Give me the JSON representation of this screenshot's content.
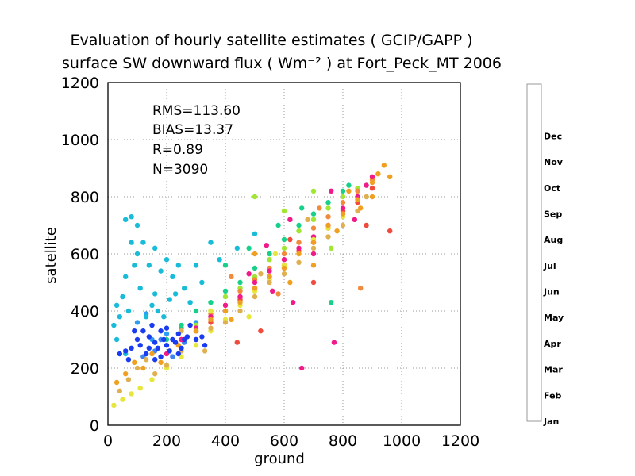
{
  "chart_data": {
    "type": "scatter",
    "title": "Evaluation of hourly satellite estimates ( GCIP/GAPP )",
    "subtitle": "surface SW downward flux ( Wm⁻² ) at Fort_Peck_MT 2006",
    "xlabel": "ground",
    "ylabel": "satellite",
    "xlim": [
      0,
      1200
    ],
    "ylim": [
      0,
      1200
    ],
    "xticks": [
      "0",
      "200",
      "400",
      "600",
      "800",
      "1000",
      "1200"
    ],
    "yticks": [
      "0",
      "200",
      "400",
      "600",
      "800",
      "1000",
      "1200"
    ],
    "grid": true,
    "stats": [
      "RMS=113.60",
      "BIAS=13.37",
      "R=0.89",
      "N=3090"
    ],
    "colorbar": {
      "placement": "right",
      "months": [
        {
          "label": "Jan",
          "color": "#3f84f0"
        },
        {
          "label": "Feb",
          "color": "#2a9df5"
        },
        {
          "label": "Mar",
          "color": "#19bcd8"
        },
        {
          "label": "Apr",
          "color": "#18d08a"
        },
        {
          "label": "May",
          "color": "#20d020"
        },
        {
          "label": "Jun",
          "color": "#a0e632"
        },
        {
          "label": "Jul",
          "color": "#f28a3c"
        },
        {
          "label": "Aug",
          "color": "#f04b3c"
        },
        {
          "label": "Sep",
          "color": "#f01a8a"
        },
        {
          "label": "Oct",
          "color": "#e6e63c"
        },
        {
          "label": "Nov",
          "color": "#e0b050"
        },
        {
          "label": "Dec",
          "color": "#f0a020"
        },
        {
          "label": "",
          "color": "#1a3cf0"
        }
      ]
    },
    "series": [
      {
        "month": "Dec",
        "color": "#1a3cf0",
        "points": [
          [
            40,
            250
          ],
          [
            60,
            260
          ],
          [
            80,
            270
          ],
          [
            100,
            300
          ],
          [
            120,
            330
          ],
          [
            140,
            310
          ],
          [
            160,
            290
          ],
          [
            180,
            330
          ],
          [
            200,
            280
          ],
          [
            220,
            300
          ],
          [
            240,
            320
          ],
          [
            260,
            300
          ],
          [
            280,
            350
          ],
          [
            300,
            300
          ],
          [
            70,
            230
          ],
          [
            110,
            280
          ],
          [
            130,
            250
          ],
          [
            150,
            350
          ],
          [
            170,
            270
          ],
          [
            190,
            300
          ],
          [
            210,
            260
          ],
          [
            230,
            290
          ],
          [
            250,
            270
          ],
          [
            270,
            310
          ],
          [
            90,
            330
          ],
          [
            200,
            340
          ],
          [
            180,
            240
          ],
          [
            160,
            230
          ],
          [
            320,
            310
          ],
          [
            330,
            280
          ],
          [
            240,
            250
          ],
          [
            140,
            270
          ]
        ]
      },
      {
        "month": "Nov",
        "color": "#f0a020",
        "points": [
          [
            30,
            150
          ],
          [
            60,
            180
          ],
          [
            90,
            220
          ],
          [
            120,
            200
          ],
          [
            150,
            250
          ],
          [
            180,
            220
          ],
          [
            210,
            260
          ],
          [
            240,
            280
          ],
          [
            300,
            330
          ],
          [
            350,
            370
          ],
          [
            400,
            400
          ],
          [
            450,
            430
          ],
          [
            500,
            480
          ],
          [
            550,
            520
          ],
          [
            600,
            550
          ],
          [
            650,
            600
          ],
          [
            700,
            640
          ],
          [
            750,
            700
          ],
          [
            800,
            740
          ],
          [
            850,
            790
          ],
          [
            900,
            850
          ],
          [
            920,
            880
          ],
          [
            940,
            910
          ],
          [
            500,
            600
          ],
          [
            420,
            370
          ],
          [
            620,
            500
          ],
          [
            700,
            560
          ],
          [
            780,
            680
          ],
          [
            860,
            760
          ],
          [
            900,
            800
          ],
          [
            960,
            870
          ],
          [
            820,
            820
          ]
        ]
      },
      {
        "month": "Oct",
        "color": "#e0b050",
        "points": [
          [
            40,
            120
          ],
          [
            70,
            160
          ],
          [
            100,
            200
          ],
          [
            130,
            230
          ],
          [
            160,
            180
          ],
          [
            200,
            210
          ],
          [
            250,
            260
          ],
          [
            300,
            300
          ],
          [
            350,
            340
          ],
          [
            400,
            360
          ],
          [
            450,
            400
          ],
          [
            500,
            450
          ],
          [
            550,
            500
          ],
          [
            600,
            530
          ],
          [
            650,
            570
          ],
          [
            700,
            620
          ],
          [
            750,
            660
          ],
          [
            800,
            700
          ],
          [
            850,
            750
          ],
          [
            880,
            800
          ],
          [
            250,
            330
          ],
          [
            330,
            260
          ],
          [
            520,
            530
          ],
          [
            680,
            720
          ]
        ]
      },
      {
        "month": "Sep",
        "color": "#e6e63c",
        "points": [
          [
            20,
            70
          ],
          [
            50,
            90
          ],
          [
            80,
            110
          ],
          [
            110,
            130
          ],
          [
            150,
            160
          ],
          [
            200,
            200
          ],
          [
            250,
            240
          ],
          [
            300,
            280
          ],
          [
            350,
            330
          ],
          [
            400,
            370
          ],
          [
            450,
            420
          ],
          [
            500,
            470
          ],
          [
            550,
            510
          ],
          [
            600,
            560
          ],
          [
            650,
            600
          ],
          [
            700,
            650
          ],
          [
            750,
            690
          ],
          [
            800,
            730
          ],
          [
            350,
            400
          ],
          [
            480,
            380
          ],
          [
            570,
            600
          ]
        ]
      },
      {
        "month": "Aug",
        "color": "#f01a8a",
        "points": [
          [
            200,
            250
          ],
          [
            250,
            300
          ],
          [
            300,
            340
          ],
          [
            350,
            380
          ],
          [
            400,
            420
          ],
          [
            450,
            450
          ],
          [
            500,
            500
          ],
          [
            550,
            540
          ],
          [
            600,
            580
          ],
          [
            650,
            620
          ],
          [
            700,
            660
          ],
          [
            750,
            700
          ],
          [
            800,
            760
          ],
          [
            850,
            800
          ],
          [
            880,
            840
          ],
          [
            900,
            870
          ],
          [
            660,
            200
          ],
          [
            770,
            290
          ],
          [
            630,
            430
          ],
          [
            540,
            630
          ],
          [
            620,
            720
          ],
          [
            700,
            600
          ],
          [
            840,
            720
          ],
          [
            760,
            820
          ],
          [
            560,
            470
          ],
          [
            480,
            530
          ]
        ]
      },
      {
        "month": "Jul",
        "color": "#f04b3c",
        "points": [
          [
            300,
            330
          ],
          [
            350,
            360
          ],
          [
            400,
            400
          ],
          [
            450,
            440
          ],
          [
            500,
            480
          ],
          [
            550,
            520
          ],
          [
            600,
            560
          ],
          [
            650,
            610
          ],
          [
            700,
            640
          ],
          [
            750,
            690
          ],
          [
            800,
            750
          ],
          [
            850,
            780
          ],
          [
            900,
            830
          ],
          [
            440,
            290
          ],
          [
            520,
            330
          ],
          [
            960,
            680
          ],
          [
            880,
            700
          ],
          [
            620,
            650
          ],
          [
            700,
            500
          ]
        ]
      },
      {
        "month": "Jun",
        "color": "#f28a3c",
        "points": [
          [
            250,
            300
          ],
          [
            300,
            340
          ],
          [
            350,
            390
          ],
          [
            400,
            420
          ],
          [
            450,
            470
          ],
          [
            500,
            510
          ],
          [
            550,
            550
          ],
          [
            600,
            600
          ],
          [
            650,
            640
          ],
          [
            700,
            690
          ],
          [
            750,
            730
          ],
          [
            800,
            780
          ],
          [
            850,
            820
          ],
          [
            900,
            860
          ],
          [
            860,
            480
          ],
          [
            420,
            520
          ],
          [
            580,
            460
          ],
          [
            720,
            760
          ]
        ]
      },
      {
        "month": "May",
        "color": "#a0e632",
        "points": [
          [
            300,
            350
          ],
          [
            350,
            400
          ],
          [
            400,
            450
          ],
          [
            450,
            480
          ],
          [
            500,
            520
          ],
          [
            550,
            580
          ],
          [
            600,
            620
          ],
          [
            650,
            680
          ],
          [
            700,
            720
          ],
          [
            750,
            760
          ],
          [
            800,
            800
          ],
          [
            850,
            830
          ],
          [
            500,
            800
          ],
          [
            600,
            750
          ],
          [
            700,
            820
          ],
          [
            760,
            620
          ]
        ]
      },
      {
        "month": "Apr",
        "color": "#18d08a",
        "points": [
          [
            200,
            300
          ],
          [
            250,
            350
          ],
          [
            300,
            400
          ],
          [
            350,
            430
          ],
          [
            400,
            470
          ],
          [
            450,
            500
          ],
          [
            500,
            550
          ],
          [
            550,
            600
          ],
          [
            600,
            650
          ],
          [
            650,
            700
          ],
          [
            700,
            740
          ],
          [
            750,
            780
          ],
          [
            800,
            820
          ],
          [
            400,
            560
          ],
          [
            480,
            620
          ],
          [
            580,
            700
          ],
          [
            660,
            760
          ],
          [
            820,
            840
          ],
          [
            760,
            430
          ]
        ]
      },
      {
        "month": "Mar",
        "color": "#19bcd8",
        "points": [
          [
            30,
            420
          ],
          [
            50,
            450
          ],
          [
            60,
            720
          ],
          [
            80,
            730
          ],
          [
            100,
            600
          ],
          [
            120,
            640
          ],
          [
            140,
            560
          ],
          [
            160,
            620
          ],
          [
            180,
            540
          ],
          [
            200,
            580
          ],
          [
            220,
            520
          ],
          [
            240,
            560
          ],
          [
            260,
            480
          ],
          [
            60,
            520
          ],
          [
            90,
            560
          ],
          [
            110,
            480
          ],
          [
            40,
            380
          ],
          [
            70,
            400
          ],
          [
            130,
            380
          ],
          [
            150,
            420
          ],
          [
            170,
            400
          ],
          [
            190,
            380
          ],
          [
            210,
            440
          ],
          [
            230,
            460
          ],
          [
            280,
            430
          ],
          [
            300,
            560
          ],
          [
            320,
            500
          ],
          [
            350,
            640
          ],
          [
            380,
            580
          ],
          [
            440,
            620
          ],
          [
            500,
            670
          ],
          [
            80,
            640
          ],
          [
            20,
            350
          ],
          [
            30,
            300
          ],
          [
            60,
            250
          ],
          [
            100,
            700
          ],
          [
            160,
            460
          ]
        ]
      },
      {
        "month": "Feb",
        "color": "#2a9df5",
        "points": [
          [
            100,
            360
          ],
          [
            150,
            300
          ],
          [
            200,
            320
          ],
          [
            250,
            340
          ],
          [
            300,
            360
          ],
          [
            350,
            380
          ],
          [
            130,
            390
          ]
        ]
      },
      {
        "month": "Jan",
        "color": "#3f84f0",
        "points": [
          [
            120,
            240
          ],
          [
            160,
            260
          ],
          [
            220,
            240
          ],
          [
            260,
            290
          ],
          [
            180,
            300
          ]
        ]
      }
    ]
  }
}
